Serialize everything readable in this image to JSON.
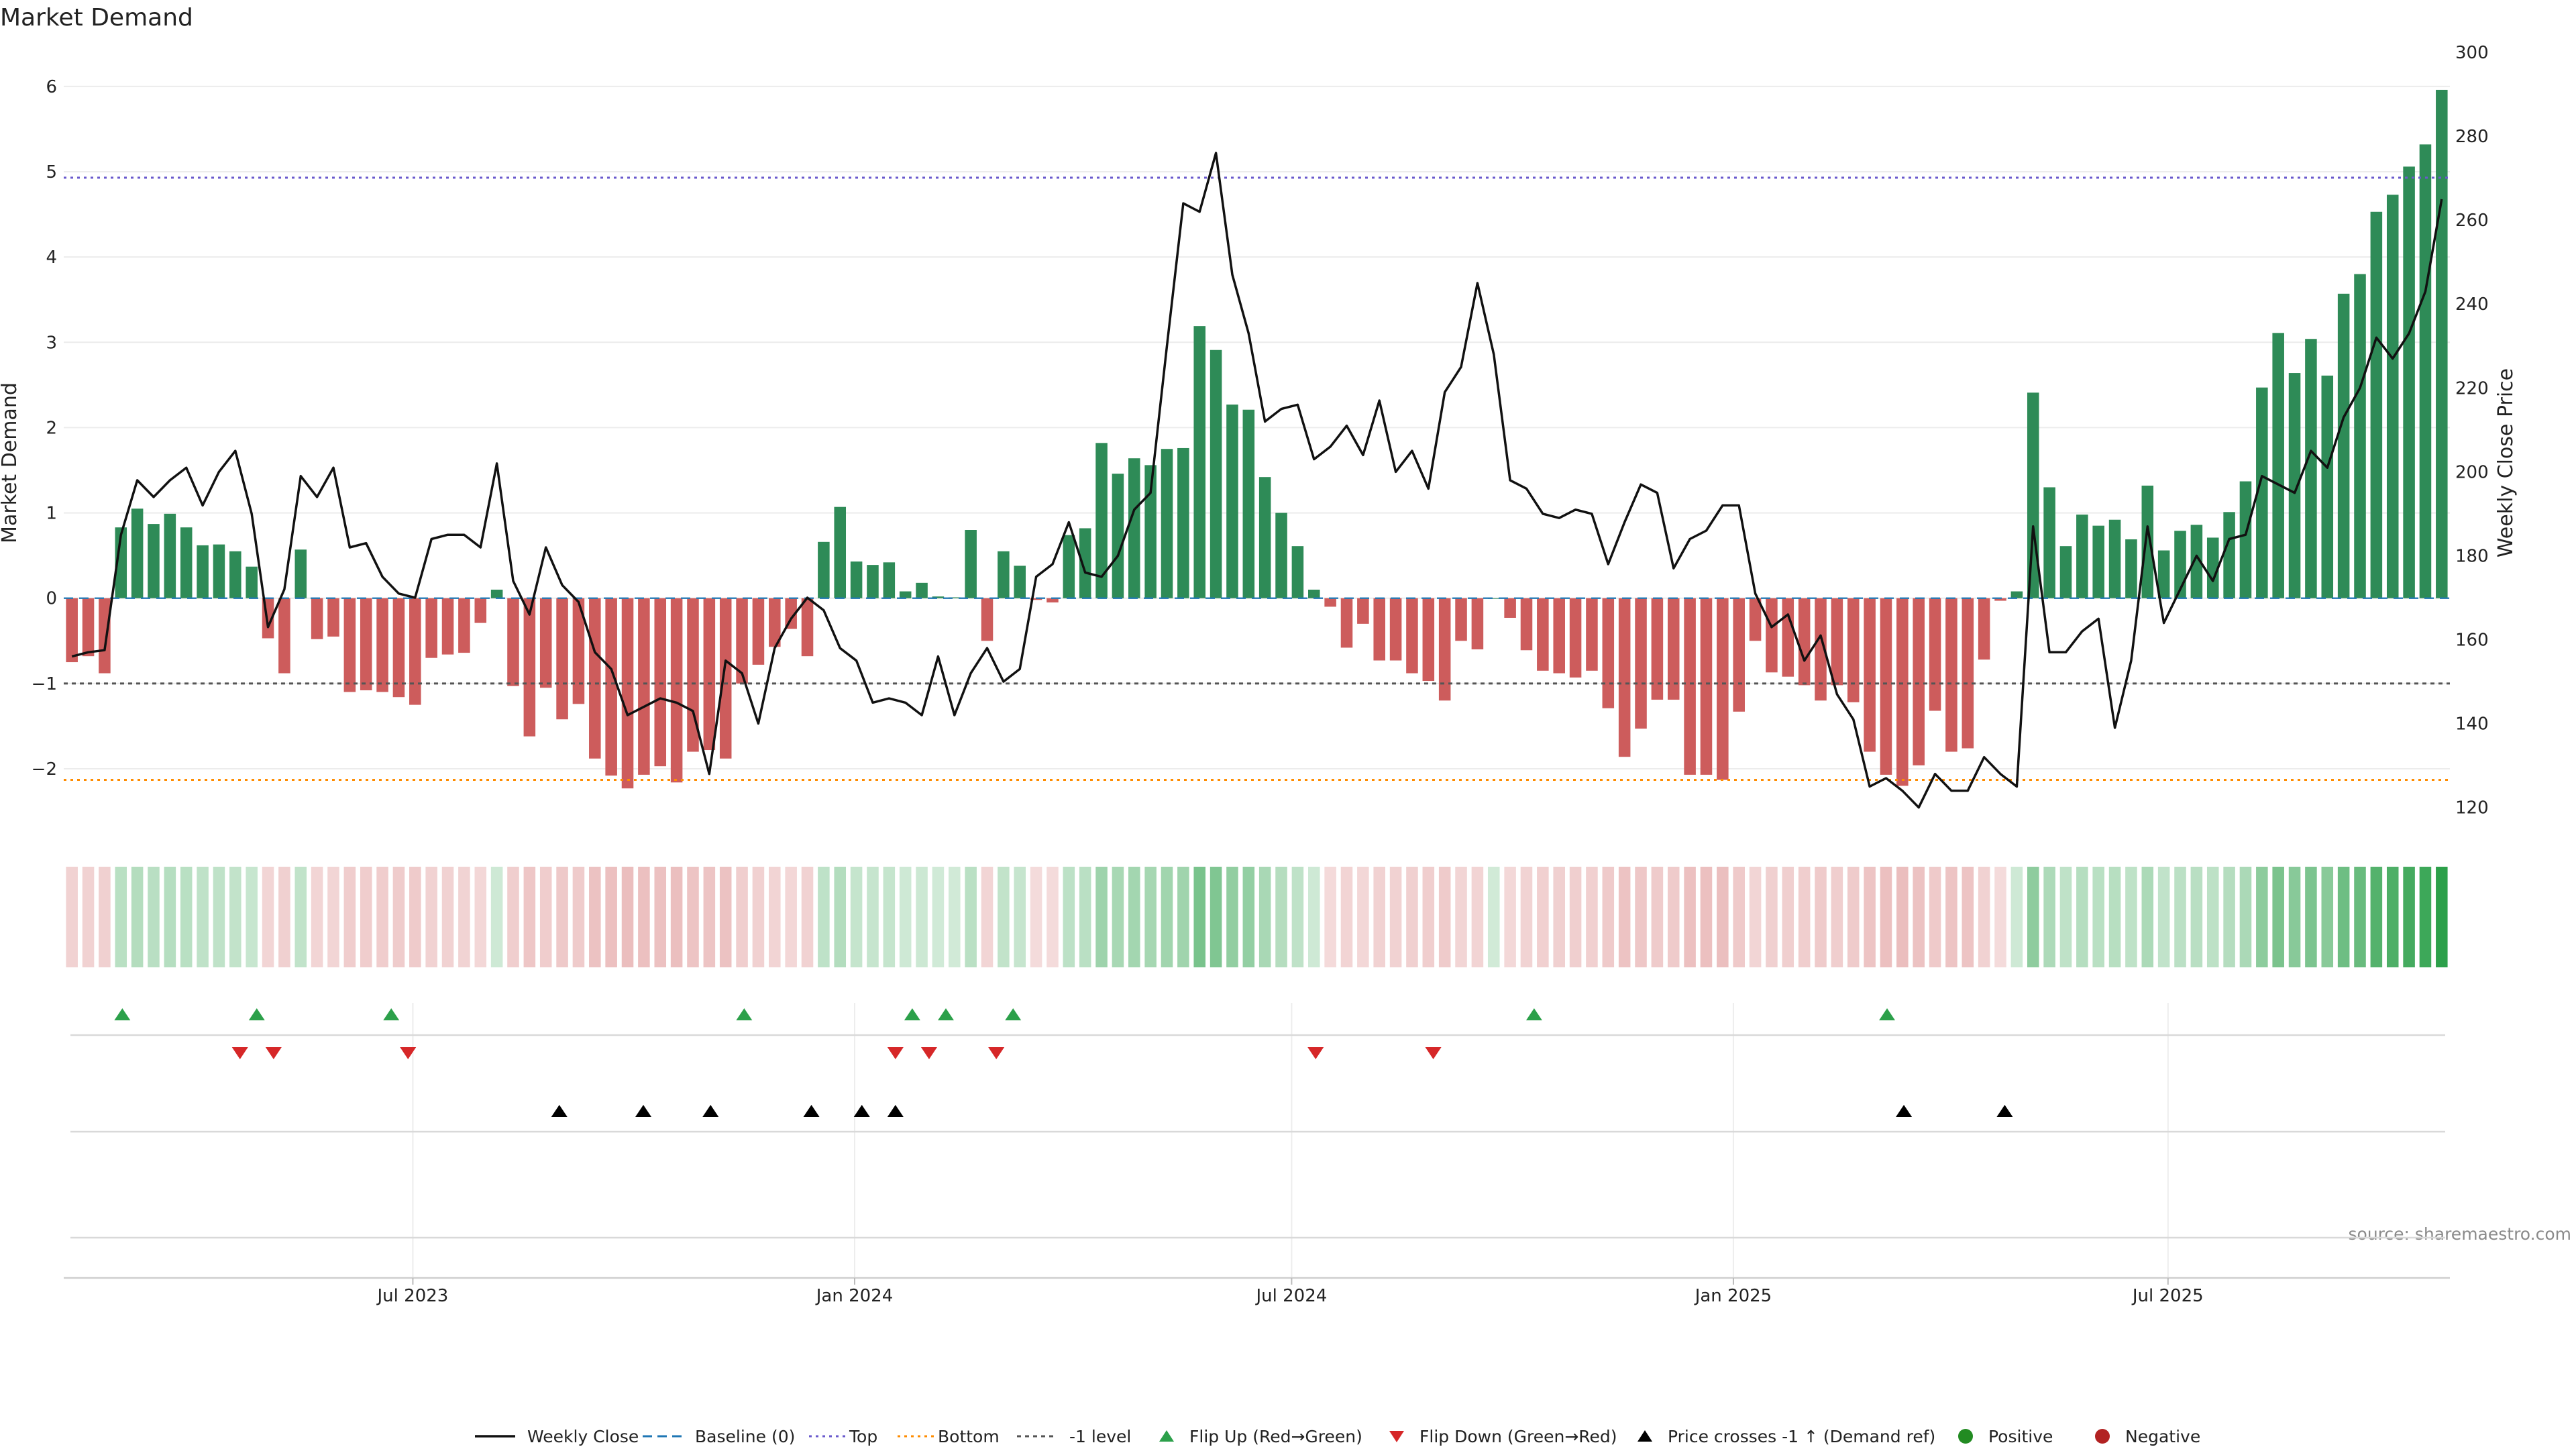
{
  "chart_data": {
    "type": "bar",
    "title": "Market Demand",
    "ylabel": "Market Demand",
    "y2label": "Weekly Close Price",
    "ylim": [
      -2.7,
      6.4
    ],
    "y2lim": [
      115,
      300
    ],
    "yticks": [
      -2,
      -1,
      0,
      1,
      2,
      3,
      4,
      5,
      6
    ],
    "yticks_labels": [
      "−2",
      "−1",
      "0",
      "1",
      "2",
      "3",
      "4",
      "5",
      "6"
    ],
    "y2ticks": [
      120,
      140,
      160,
      180,
      200,
      220,
      240,
      260,
      280,
      300
    ],
    "reference_lines": {
      "top": 4.93,
      "bottom": -2.13,
      "minus_one": -1.0,
      "baseline": 0
    },
    "x_axis": {
      "start": "2023-02-09",
      "end": "2025-10-23",
      "ticks": [
        {
          "date": "2023-07-01",
          "label": "Jul 2023"
        },
        {
          "date": "2024-01-01",
          "label": "Jan 2024"
        },
        {
          "date": "2024-07-01",
          "label": "Jul 2024"
        },
        {
          "date": "2025-01-01",
          "label": "Jan 2025"
        },
        {
          "date": "2025-07-01",
          "label": "Jul 2025"
        }
      ]
    },
    "series": [
      {
        "name": "Market Demand",
        "values": [
          -0.75,
          -0.68,
          -0.88,
          0.83,
          1.05,
          0.87,
          0.99,
          0.83,
          0.62,
          0.63,
          0.55,
          0.37,
          -0.47,
          -0.88,
          0.57,
          -0.48,
          -0.45,
          -1.1,
          -1.08,
          -1.1,
          -1.16,
          -1.25,
          -0.7,
          -0.66,
          -0.64,
          -0.29,
          0.1,
          -1.03,
          -1.62,
          -1.05,
          -1.42,
          -1.24,
          -1.88,
          -2.08,
          -2.23,
          -2.07,
          -1.97,
          -2.16,
          -1.8,
          -1.78,
          -1.88,
          -1.0,
          -0.78,
          -0.57,
          -0.36,
          -0.68,
          0.66,
          1.07,
          0.43,
          0.39,
          0.42,
          0.08,
          0.18,
          0.02,
          0.01,
          0.8,
          -0.5,
          0.55,
          0.38,
          -0.02,
          -0.05,
          0.74,
          0.82,
          1.82,
          1.46,
          1.64,
          1.56,
          1.75,
          1.76,
          3.19,
          2.91,
          2.27,
          2.21,
          1.42,
          1.0,
          0.61,
          0.1,
          -0.1,
          -0.58,
          -0.3,
          -0.73,
          -0.73,
          -0.88,
          -0.97,
          -1.2,
          -0.5,
          -0.6,
          0.0,
          -0.23,
          -0.61,
          -0.85,
          -0.88,
          -0.93,
          -0.85,
          -1.29,
          -1.86,
          -1.53,
          -1.19,
          -1.19,
          -2.07,
          -2.07,
          -2.13,
          -1.33,
          -0.5,
          -0.87,
          -0.92,
          -1.02,
          -1.2,
          -1.02,
          -1.22,
          -1.8,
          -2.07,
          -2.2,
          -1.96,
          -1.32,
          -1.8,
          -1.76,
          -0.72,
          -0.03,
          0.08,
          2.41,
          1.3,
          0.61,
          0.98,
          0.85,
          0.92,
          0.69,
          1.32,
          0.56,
          0.79,
          0.86,
          0.71,
          1.01,
          1.37,
          2.47,
          3.11,
          2.64,
          3.04,
          2.61,
          3.57,
          3.8,
          4.53,
          4.73,
          5.06,
          5.32,
          5.96
        ]
      },
      {
        "name": "Weekly Close",
        "values": [
          156,
          157,
          157.5,
          185,
          198,
          194,
          198,
          201,
          192,
          200,
          205,
          190,
          163,
          172,
          199,
          194,
          201,
          182,
          183,
          175,
          171,
          170,
          184,
          185,
          185,
          182,
          202,
          174,
          166,
          182,
          173,
          169,
          157,
          153,
          142,
          144,
          146,
          145,
          143,
          128,
          155,
          152,
          140,
          158,
          165,
          170,
          167,
          158,
          155,
          145,
          146,
          145,
          142,
          156,
          142,
          152,
          158,
          150,
          153,
          175,
          178,
          188,
          176,
          175,
          180,
          191,
          195,
          230,
          264,
          262,
          276,
          247,
          233,
          212,
          215,
          216,
          203,
          206,
          211,
          204,
          217,
          200,
          205,
          196,
          219,
          225,
          245,
          228,
          198,
          196,
          190,
          189,
          191,
          190,
          178,
          188,
          197,
          195,
          177,
          184,
          186,
          192,
          192,
          171,
          163,
          166,
          155,
          161,
          147,
          141,
          125,
          127,
          124,
          120,
          128,
          124,
          124,
          132,
          128,
          125,
          187,
          157,
          157,
          162,
          165,
          139,
          155,
          187,
          164,
          172,
          180,
          174,
          184,
          185,
          199,
          197,
          195,
          205,
          201,
          213,
          220,
          232,
          227,
          233,
          243,
          265
        ]
      }
    ],
    "events": {
      "flip_up": [
        "2023-03-02",
        "2023-04-27",
        "2023-06-22",
        "2023-11-16",
        "2024-01-25",
        "2024-02-08",
        "2024-03-07",
        "2024-10-10",
        "2025-03-06"
      ],
      "flip_down": [
        "2023-04-20",
        "2023-05-04",
        "2023-06-29",
        "2024-01-18",
        "2024-02-01",
        "2024-02-29",
        "2024-07-11",
        "2024-08-29"
      ],
      "price_crosses": [
        "2023-08-31",
        "2023-10-05",
        "2023-11-02",
        "2023-12-14",
        "2024-01-04",
        "2024-01-18",
        "2025-03-13",
        "2025-04-24"
      ]
    },
    "legend": [
      {
        "label": "Weekly Close",
        "type": "line"
      },
      {
        "label": "Baseline (0)",
        "type": "dashed"
      },
      {
        "label": "Top",
        "type": "dotted"
      },
      {
        "label": "Bottom",
        "type": "dotted-orange"
      },
      {
        "label": "-1 level",
        "type": "dashed-gray"
      },
      {
        "label": "Flip Up (Red→Green)",
        "type": "tri-up-green"
      },
      {
        "label": "Flip Down (Green→Red)",
        "type": "tri-down-red"
      },
      {
        "label": "Price crosses -1 ↑ (Demand ref)",
        "type": "tri-up-black"
      },
      {
        "label": "Positive",
        "type": "dot-green"
      },
      {
        "label": "Negative",
        "type": "dot-red"
      }
    ],
    "colors": {
      "positive": "#2e8b57",
      "negative": "#cd5c5c",
      "line": "#111111",
      "baseline": "#1f77b4",
      "top": "#6a5acd",
      "bottom": "#ff8c00",
      "minus_one": "#555555",
      "flip_up": "#2ca04a",
      "flip_down": "#d62728",
      "cross": "#000000",
      "legend_positive": "#228b22",
      "legend_negative": "#b22222"
    },
    "source": "source: sharemaestro.com"
  }
}
